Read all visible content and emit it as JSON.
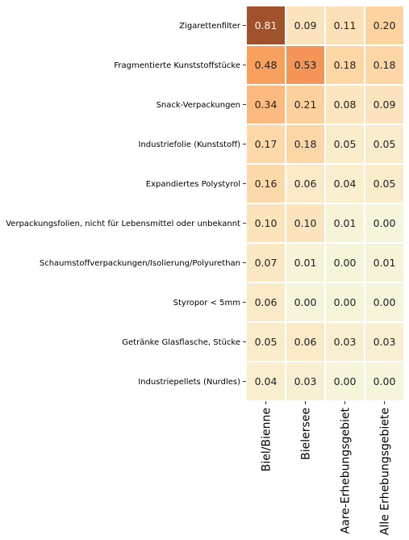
{
  "chart_data": {
    "type": "heatmap",
    "rows": [
      "Zigarettenfilter",
      "Fragmentierte Kunststoffstücke",
      "Snack-Verpackungen",
      "Industriefolie (Kunststoff)",
      "Expandiertes Polystyrol",
      "Verpackungsfolien, nicht für Lebensmittel oder unbekannt",
      "Schaumstoffverpackungen/Isolierung/Polyurethan",
      "Styropor < 5mm",
      "Getränke Glasflasche, Stücke",
      "Industriepellets (Nurdles)"
    ],
    "columns": [
      "Biel/Bienne",
      "Bielersee",
      "Aare-Erhebungsgebiet",
      "Alle Erhebungsgebiete"
    ],
    "values": [
      [
        0.81,
        0.09,
        0.11,
        0.2
      ],
      [
        0.48,
        0.53,
        0.18,
        0.18
      ],
      [
        0.34,
        0.21,
        0.08,
        0.09
      ],
      [
        0.17,
        0.18,
        0.05,
        0.05
      ],
      [
        0.16,
        0.06,
        0.04,
        0.05
      ],
      [
        0.1,
        0.1,
        0.01,
        0.0
      ],
      [
        0.07,
        0.01,
        0.0,
        0.01
      ],
      [
        0.06,
        0.0,
        0.0,
        0.0
      ],
      [
        0.05,
        0.06,
        0.03,
        0.03
      ],
      [
        0.04,
        0.03,
        0.0,
        0.0
      ]
    ],
    "value_labels": [
      [
        "0.81",
        "0.09",
        "0.11",
        "0.20"
      ],
      [
        "0.48",
        "0.53",
        "0.18",
        "0.18"
      ],
      [
        "0.34",
        "0.21",
        "0.08",
        "0.09"
      ],
      [
        "0.17",
        "0.18",
        "0.05",
        "0.05"
      ],
      [
        "0.16",
        "0.06",
        "0.04",
        "0.05"
      ],
      [
        "0.10",
        "0.10",
        "0.01",
        "0.00"
      ],
      [
        "0.07",
        "0.01",
        "0.00",
        "0.01"
      ],
      [
        "0.06",
        "0.00",
        "0.00",
        "0.00"
      ],
      [
        "0.05",
        "0.06",
        "0.03",
        "0.03"
      ],
      [
        "0.04",
        "0.03",
        "0.00",
        "0.00"
      ]
    ],
    "color_scale": {
      "vmin": 0,
      "vmax": 1,
      "colors": [
        "#f6f5dc",
        "#fbe6c0",
        "#fdd3a0",
        "#f8a05e",
        "#f0884e",
        "#a0522d"
      ],
      "stops": [
        0,
        0.08,
        0.2,
        0.48,
        0.58,
        0.81
      ]
    },
    "text_color_dark": "#222222",
    "text_color_light": "#ffffff",
    "cell_border_color": "#ffffff",
    "colorbar": false
  }
}
